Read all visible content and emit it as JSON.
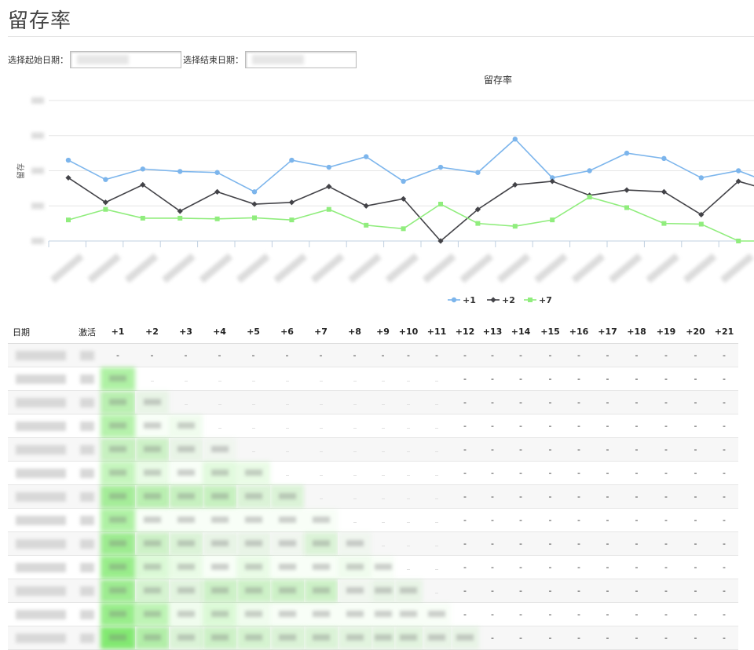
{
  "page": {
    "title": "留存率"
  },
  "filters": {
    "start_label": "选择起始日期：",
    "end_label": "选择结束日期："
  },
  "chart_data": {
    "type": "line",
    "title": "留存率",
    "ylabel": "留存",
    "ylim": [
      0,
      40
    ],
    "grid": true,
    "legend_position": "bottom-center",
    "x_points": 20,
    "series": [
      {
        "name": "+1",
        "color": "#7cb5ec",
        "marker": "circle",
        "values": [
          23,
          17.5,
          20.5,
          19.8,
          19.5,
          14,
          23,
          21,
          24,
          17,
          21,
          19.5,
          29,
          18,
          20,
          25,
          23.5,
          18,
          20,
          16
        ]
      },
      {
        "name": "+2",
        "color": "#434348",
        "marker": "diamond",
        "values": [
          18,
          11,
          16,
          8.5,
          14,
          10.5,
          11,
          15.5,
          10,
          12,
          0,
          9,
          16,
          17,
          13,
          14.5,
          14,
          7.5,
          17,
          14
        ]
      },
      {
        "name": "+7",
        "color": "#90ed7d",
        "marker": "square",
        "values": [
          6,
          9,
          6.5,
          6.5,
          6.3,
          6.6,
          6,
          9,
          4.5,
          3.5,
          10.5,
          5,
          4.2,
          6,
          12.5,
          9.5,
          5,
          4.8,
          0,
          0
        ]
      }
    ]
  },
  "table": {
    "headers": [
      "日期",
      "激活",
      "+1",
      "+2",
      "+3",
      "+4",
      "+5",
      "+6",
      "+7",
      "+8",
      "+9",
      "+10",
      "+11",
      "+12",
      "+13",
      "+14",
      "+15",
      "+16",
      "+17",
      "+18",
      "+19",
      "+20",
      "+21"
    ],
    "dash": "-"
  },
  "icons": {
    "legend_markers": [
      "circle-marker-icon",
      "diamond-marker-icon",
      "square-marker-icon"
    ]
  }
}
